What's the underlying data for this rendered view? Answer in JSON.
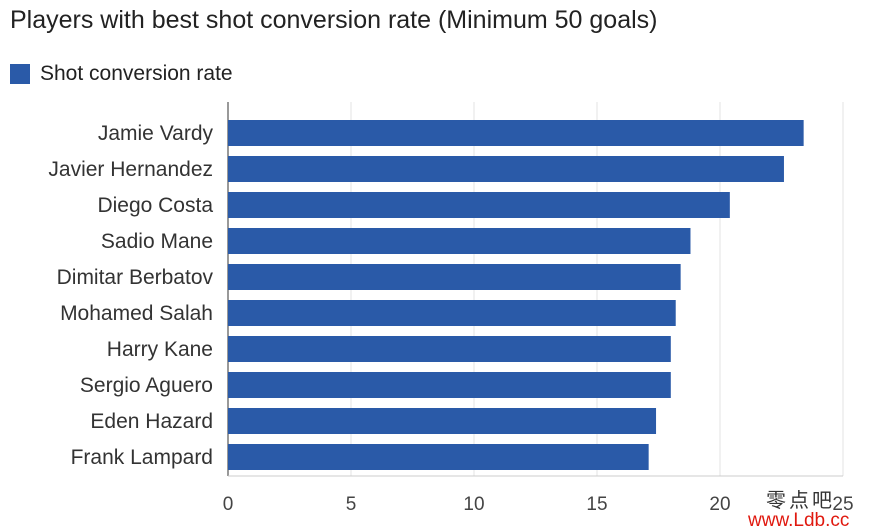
{
  "chart_data": {
    "type": "bar",
    "orientation": "horizontal",
    "title": "Players with best shot conversion rate (Minimum 50 goals)",
    "legend": "Shot conversion rate",
    "categories": [
      "Jamie Vardy",
      "Javier Hernandez",
      "Diego Costa",
      "Sadio Mane",
      "Dimitar Berbatov",
      "Mohamed Salah",
      "Harry Kane",
      "Sergio Aguero",
      "Eden Hazard",
      "Frank Lampard"
    ],
    "series": [
      {
        "name": "Shot conversion rate",
        "values": [
          23.4,
          22.6,
          20.4,
          18.8,
          18.4,
          18.2,
          18.0,
          18.0,
          17.4,
          17.1
        ]
      }
    ],
    "xlim": [
      0,
      25
    ],
    "xticks": [
      "0",
      "5",
      "10",
      "15",
      "20",
      "25"
    ],
    "grid": true,
    "legend_position": "top-left",
    "bar_color": "#2a5aa8"
  },
  "watermark": {
    "line1": "零点吧",
    "line2": "www.Ldb.cc"
  }
}
